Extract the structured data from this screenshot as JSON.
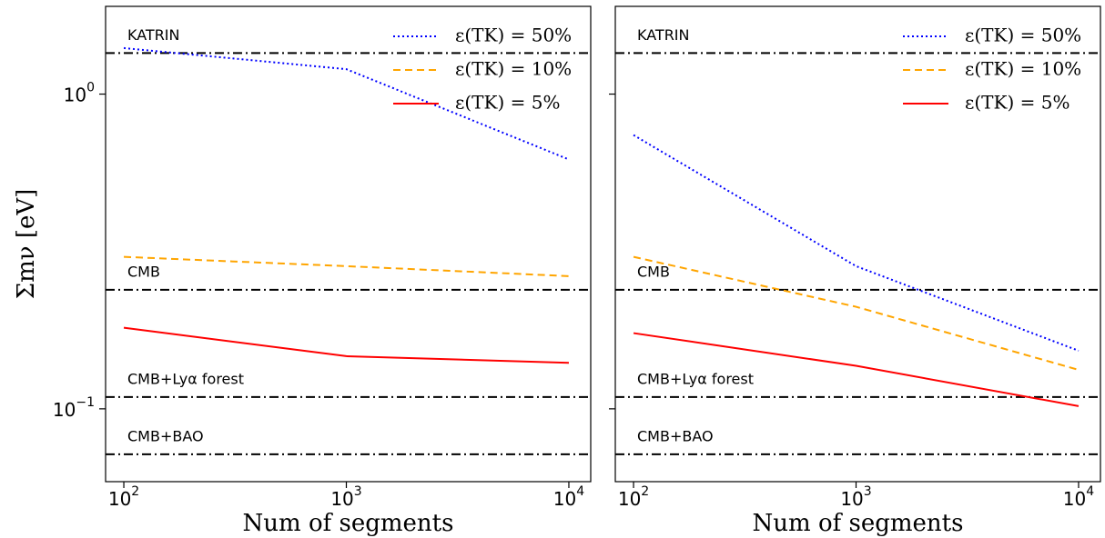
{
  "chart_data": [
    {
      "type": "line",
      "xlabel": "Num of segments",
      "ylabel": "Σmν [eV]",
      "xscale": "log",
      "yscale": "log",
      "x": [
        100,
        1000,
        10000
      ],
      "xlim": [
        82.8,
        12540
      ],
      "ylim": [
        0.0587,
        1.9
      ],
      "xticks": [
        {
          "value": 100,
          "label": "10",
          "exponent": "2"
        },
        {
          "value": 1000,
          "label": "10",
          "exponent": "3"
        },
        {
          "value": 10000,
          "label": "10",
          "exponent": "4"
        }
      ],
      "yticks": [
        {
          "value": 0.1,
          "label": "10",
          "exponent": "−1"
        },
        {
          "value": 1,
          "label": "10",
          "exponent": "0"
        }
      ],
      "legend": "upper right",
      "series": [
        {
          "name": "ε(TK) = 50%",
          "color": "#0000ff",
          "linestyle": "dotted",
          "values": [
            1.4,
            1.2,
            0.62
          ]
        },
        {
          "name": "ε(TK) = 10%",
          "color": "#ffa500",
          "linestyle": "dashed",
          "values": [
            0.304,
            0.284,
            0.264
          ]
        },
        {
          "name": "ε(TK) = 5%",
          "color": "#ff0000",
          "linestyle": "solid",
          "values": [
            0.181,
            0.147,
            0.14
          ]
        }
      ],
      "reference_lines": [
        {
          "label": "KATRIN",
          "value": 1.35
        },
        {
          "label": "CMB",
          "value": 0.239
        },
        {
          "label": "CMB+Lyα forest",
          "value": 0.109
        },
        {
          "label": "CMB+BAO",
          "value": 0.0717
        }
      ]
    },
    {
      "type": "line",
      "xlabel": "Num of segments",
      "xscale": "log",
      "yscale": "log",
      "x": [
        100,
        1000,
        10000
      ],
      "xlim": [
        82.8,
        12540
      ],
      "ylim": [
        0.0587,
        1.9
      ],
      "xticks": [
        {
          "value": 100,
          "label": "10",
          "exponent": "2"
        },
        {
          "value": 1000,
          "label": "10",
          "exponent": "3"
        },
        {
          "value": 10000,
          "label": "10",
          "exponent": "4"
        }
      ],
      "yticks": [
        0.1,
        1
      ],
      "legend": "upper right",
      "series": [
        {
          "name": "ε(TK) = 50%",
          "color": "#0000ff",
          "linestyle": "dotted",
          "values": [
            0.741,
            0.284,
            0.153
          ]
        },
        {
          "name": "ε(TK) = 10%",
          "color": "#ffa500",
          "linestyle": "dashed",
          "values": [
            0.304,
            0.211,
            0.133
          ]
        },
        {
          "name": "ε(TK) = 5%",
          "color": "#ff0000",
          "linestyle": "solid",
          "values": [
            0.174,
            0.137,
            0.102
          ]
        }
      ],
      "reference_lines": [
        {
          "label": "KATRIN",
          "value": 1.35
        },
        {
          "label": "CMB",
          "value": 0.239
        },
        {
          "label": "CMB+Lyα forest",
          "value": 0.109
        },
        {
          "label": "CMB+BAO",
          "value": 0.0717
        }
      ]
    }
  ]
}
